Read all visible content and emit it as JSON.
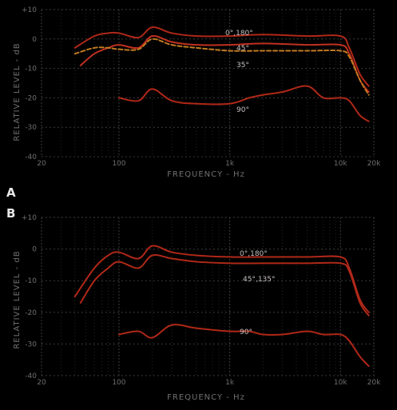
{
  "chart_data": [
    {
      "panel_label": "A",
      "type": "line",
      "ylabel": "RELATIVE LEVEL - dB",
      "xlabel": "FREQUENCY - Hz",
      "xscale": "log",
      "xlim": [
        20,
        20000
      ],
      "ylim": [
        -40,
        10
      ],
      "x_ticks": [
        "20",
        "100",
        "1k",
        "10k",
        "20k"
      ],
      "y_ticks": [
        "+10",
        "0",
        "-10",
        "-20",
        "-30",
        "-40"
      ],
      "grid": true,
      "series": [
        {
          "name": "0°,180°",
          "color": "#b02818",
          "x": [
            40,
            60,
            80,
            100,
            150,
            200,
            300,
            500,
            1000,
            2000,
            5000,
            10000,
            12000,
            15000,
            18000
          ],
          "y": [
            -3,
            1,
            2,
            2,
            0.5,
            4,
            2,
            1,
            1,
            1.5,
            1,
            1,
            -3,
            -12,
            -16
          ]
        },
        {
          "name": "45°",
          "color": "#c03020",
          "x": [
            45,
            60,
            80,
            100,
            150,
            200,
            300,
            500,
            1000,
            2000,
            5000,
            10000,
            12000,
            15000,
            18000
          ],
          "y": [
            -9,
            -5,
            -3,
            -2,
            -3,
            1,
            -1,
            -2,
            -2,
            -1.5,
            -2,
            -2,
            -5,
            -14,
            -18
          ]
        },
        {
          "name": "35°",
          "color": "#c07a20",
          "dashed": true,
          "x": [
            40,
            60,
            80,
            100,
            150,
            200,
            300,
            500,
            1000,
            2000,
            5000,
            10000,
            12000,
            15000,
            18000
          ],
          "y": [
            -5,
            -3,
            -3,
            -3.5,
            -3.5,
            0,
            -2,
            -3,
            -4,
            -4,
            -4,
            -4,
            -6,
            -14,
            -19
          ]
        },
        {
          "name": "90°",
          "color": "#b02818",
          "x": [
            100,
            150,
            200,
            300,
            500,
            1000,
            1500,
            2000,
            3000,
            5000,
            7000,
            10000,
            12000,
            15000,
            18000
          ],
          "y": [
            -20,
            -21,
            -17,
            -21,
            -22,
            -22,
            -20,
            -19,
            -18,
            -16,
            -20,
            -20,
            -21,
            -26,
            -28
          ]
        }
      ]
    },
    {
      "panel_label": "B",
      "type": "line",
      "ylabel": "RELATIVE LEVEL - dB",
      "xlabel": "FREQUENCY - Hz",
      "xscale": "log",
      "xlim": [
        20,
        20000
      ],
      "ylim": [
        -40,
        10
      ],
      "x_ticks": [
        "20",
        "100",
        "1k",
        "10k",
        "20k"
      ],
      "y_ticks": [
        "+10",
        "0",
        "-10",
        "-20",
        "-30",
        "-40"
      ],
      "grid": true,
      "series": [
        {
          "name": "0°,180°",
          "color": "#b02818",
          "x": [
            40,
            60,
            80,
            100,
            150,
            200,
            300,
            500,
            1000,
            2000,
            5000,
            10000,
            12000,
            15000,
            18000
          ],
          "y": [
            -15,
            -6,
            -2,
            -1,
            -3,
            1,
            -1,
            -2,
            -2.5,
            -2.5,
            -2.5,
            -2.5,
            -6,
            -16,
            -20
          ]
        },
        {
          "name": "45°,135°",
          "color": "#b02818",
          "x": [
            45,
            60,
            80,
            100,
            150,
            200,
            300,
            500,
            1000,
            2000,
            5000,
            10000,
            12000,
            15000,
            18000
          ],
          "y": [
            -17,
            -10,
            -6,
            -4,
            -6,
            -2,
            -3,
            -4,
            -4.5,
            -4.5,
            -4.5,
            -4.5,
            -7,
            -17,
            -21
          ]
        },
        {
          "name": "90°",
          "color": "#b02818",
          "x": [
            100,
            150,
            200,
            300,
            500,
            1000,
            1500,
            2000,
            3000,
            5000,
            7000,
            10000,
            12000,
            15000,
            18000
          ],
          "y": [
            -27,
            -26,
            -28,
            -24,
            -25,
            -26,
            -26,
            -27,
            -27,
            -26,
            -27,
            -27,
            -29,
            -34,
            -37
          ]
        }
      ]
    }
  ]
}
